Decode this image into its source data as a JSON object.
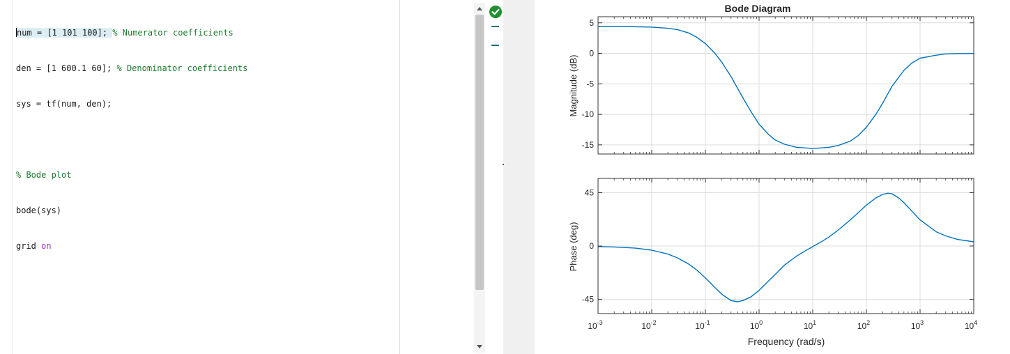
{
  "editor": {
    "lines": [
      {
        "code": "num = [1 101 100]; ",
        "comment": "% Numerator coefficients"
      },
      {
        "code": "den = [1 600.1 60]; ",
        "comment": "% Denominator coefficients"
      },
      {
        "code": "sys = tf(num, den);",
        "comment": ""
      },
      {
        "code": "",
        "comment": ""
      },
      {
        "code": "",
        "comment": "% Bode plot"
      },
      {
        "code": "bode(sys)",
        "comment": ""
      },
      {
        "code": "grid ",
        "keyword": "on"
      }
    ]
  },
  "analyzer": {
    "status_icon": "check-circle-icon",
    "status_color": "#1f8f2f"
  },
  "chart_data": {
    "type": "line",
    "title": "Bode Diagram",
    "xlabel": "Frequency (rad/s)",
    "x_scale": "log",
    "xlim": [
      0.001,
      10000
    ],
    "x_ticks": [
      0.001,
      0.01,
      0.1,
      1,
      10,
      100,
      1000,
      10000
    ],
    "x_tick_labels": [
      {
        "base": "10",
        "exp": "-3"
      },
      {
        "base": "10",
        "exp": "-2"
      },
      {
        "base": "10",
        "exp": "-1"
      },
      {
        "base": "10",
        "exp": "0"
      },
      {
        "base": "10",
        "exp": "1"
      },
      {
        "base": "10",
        "exp": "2"
      },
      {
        "base": "10",
        "exp": "3"
      },
      {
        "base": "10",
        "exp": "4"
      }
    ],
    "grid": true,
    "line_color": "#0072bd",
    "panels": [
      {
        "ylabel": "Magnitude (dB)",
        "ylim": [
          -16.5,
          6
        ],
        "y_ticks": [
          5,
          0,
          -5,
          -10,
          -15
        ],
        "y_tick_labels": [
          "5",
          "0",
          "-5",
          "-10",
          "-15"
        ],
        "series": [
          {
            "x": [
              0.001,
              0.003,
              0.01,
              0.02,
              0.03,
              0.05,
              0.07,
              0.1,
              0.15,
              0.2,
              0.3,
              0.5,
              0.7,
              1,
              1.5,
              2,
              3,
              5,
              7,
              10,
              15,
              20,
              30,
              50,
              70,
              100,
              150,
              200,
              300,
              500,
              700,
              1000,
              2000,
              3000,
              5000,
              10000
            ],
            "y": [
              4.4,
              4.4,
              4.3,
              4.1,
              3.9,
              3.3,
              2.6,
              1.6,
              0.0,
              -1.4,
              -3.8,
              -7.3,
              -9.5,
              -11.6,
              -13.3,
              -14.2,
              -14.9,
              -15.4,
              -15.5,
              -15.6,
              -15.5,
              -15.4,
              -15.1,
              -14.4,
              -13.5,
              -12.1,
              -10.0,
              -8.2,
              -5.4,
              -2.8,
              -1.6,
              -0.8,
              -0.3,
              -0.1,
              -0.05,
              -0.02
            ]
          }
        ]
      },
      {
        "ylabel": "Phase (deg)",
        "ylim": [
          -57,
          57
        ],
        "y_ticks": [
          45,
          0,
          -45
        ],
        "y_tick_labels": [
          "45",
          "0",
          "-45"
        ],
        "series": [
          {
            "x": [
              0.001,
              0.002,
              0.005,
              0.01,
              0.02,
              0.03,
              0.05,
              0.07,
              0.1,
              0.15,
              0.2,
              0.3,
              0.4,
              0.5,
              0.7,
              1,
              1.5,
              2,
              3,
              5,
              7,
              10,
              15,
              20,
              30,
              50,
              70,
              100,
              150,
              200,
              250,
              300,
              400,
              500,
              700,
              1000,
              2000,
              3000,
              5000,
              10000
            ],
            "y": [
              -0.5,
              -0.8,
              -1.8,
              -3.5,
              -6.8,
              -10,
              -15.5,
              -20.5,
              -27,
              -35,
              -40.5,
              -46,
              -47,
              -46,
              -43,
              -37.5,
              -29.5,
              -24,
              -16,
              -8.5,
              -4.5,
              -0.5,
              4,
              7.5,
              13.5,
              22,
              28,
              34.5,
              40.5,
              43.5,
              44.5,
              44,
              40.5,
              36.5,
              29.5,
              22,
              12,
              8.5,
              5.5,
              3.5
            ]
          }
        ]
      }
    ]
  }
}
